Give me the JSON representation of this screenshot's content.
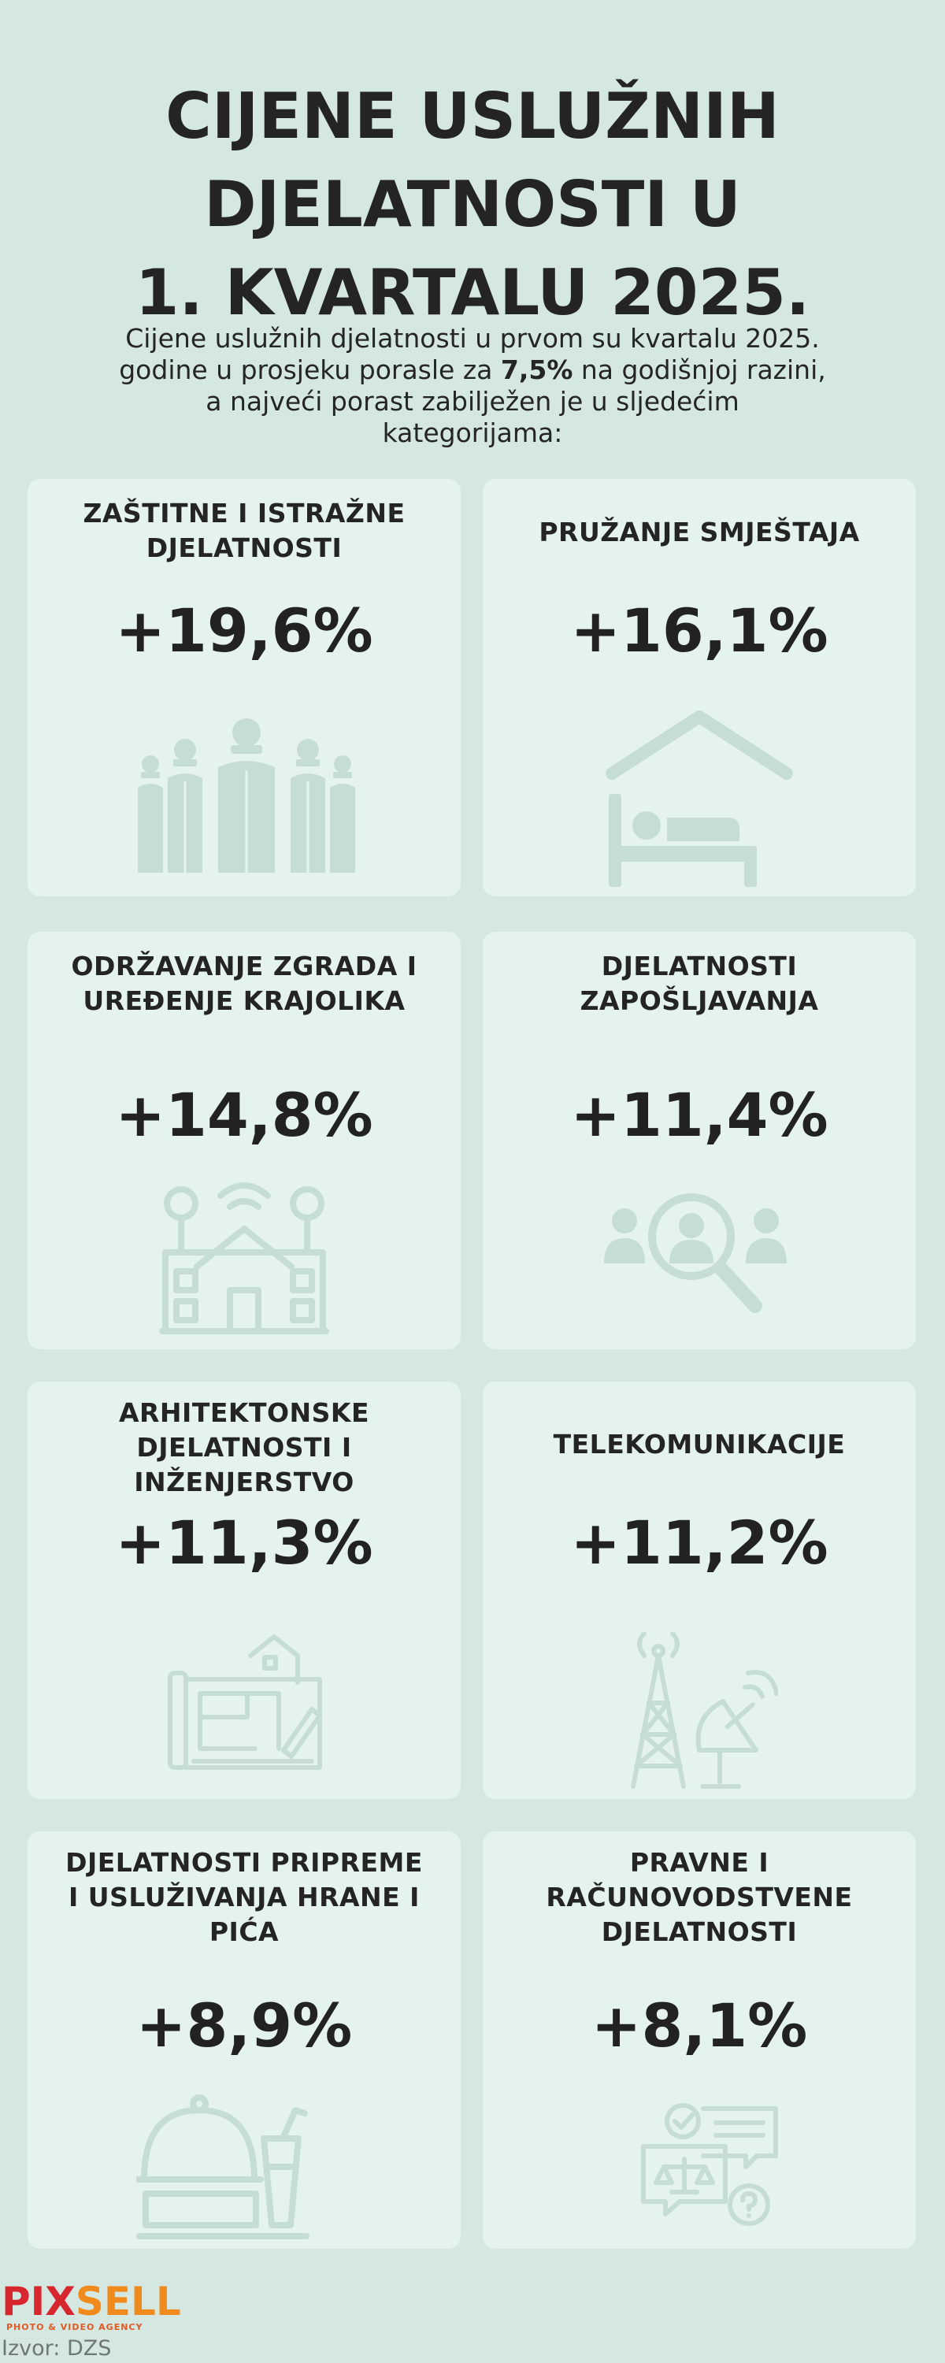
{
  "title": {
    "line1": "CIJENE USLUŽNIH",
    "line2": "DJELATNOSTI U",
    "line3": "1. KVARTALU 2025."
  },
  "intro": {
    "line1": "Cijene uslužnih djelatnosti u prvom su kvartalu 2025.",
    "line2_before": "godine u prosjeku porasle za ",
    "line2_highlight": "7,5%",
    "line2_after": " na godišnjoj razini,",
    "line3": "a najveći porast zabilježen je u sljedećim",
    "line4": "kategorijama:"
  },
  "cards": [
    {
      "lines": [
        "ZAŠTITNE I ISTRAŽNE",
        "DJELATNOSTI"
      ],
      "value": "+19,6%",
      "icon": "security-guards-icon"
    },
    {
      "lines": [
        "PRUŽANJE SMJEŠTAJA"
      ],
      "value": "+16,1%",
      "icon": "house-bed-icon"
    },
    {
      "lines": [
        "ODRŽAVANJE ZGRADA I",
        "UREĐENJE KRAJOLIKA"
      ],
      "value": "+14,8%",
      "icon": "smart-building-icon"
    },
    {
      "lines": [
        "DJELATNOSTI",
        "ZAPOŠLJAVANJA"
      ],
      "value": "+11,4%",
      "icon": "people-search-icon"
    },
    {
      "lines": [
        "ARHITEKTONSKE",
        "DJELATNOSTI I",
        "INŽENJERSTVO"
      ],
      "value": "+11,3%",
      "icon": "blueprint-icon"
    },
    {
      "lines": [
        "TELEKOMUNIKACIJE"
      ],
      "value": "+11,2%",
      "icon": "antenna-satellite-icon"
    },
    {
      "lines": [
        "DJELATNOSTI PRIPREME",
        "I USLUŽIVANJA HRANE I",
        "PIĆA"
      ],
      "value": "+8,9%",
      "icon": "food-cloche-drink-icon"
    },
    {
      "lines": [
        "PRAVNE I",
        "RAČUNOVODSTVENE",
        "DJELATNOSTI"
      ],
      "value": "+8,1%",
      "icon": "legal-chat-icon"
    }
  ],
  "logo": {
    "pix": "PIX",
    "sell": "SELL",
    "subtitle": "PHOTO & VIDEO AGENCY"
  },
  "source": "Izvor: DZS",
  "colors": {
    "background": "#d4e7e1",
    "card": "#e5f3ef",
    "icon": "#c6ddd6",
    "text": "#242424",
    "logo_red": "#d7262e",
    "logo_orange": "#f08a1c"
  }
}
